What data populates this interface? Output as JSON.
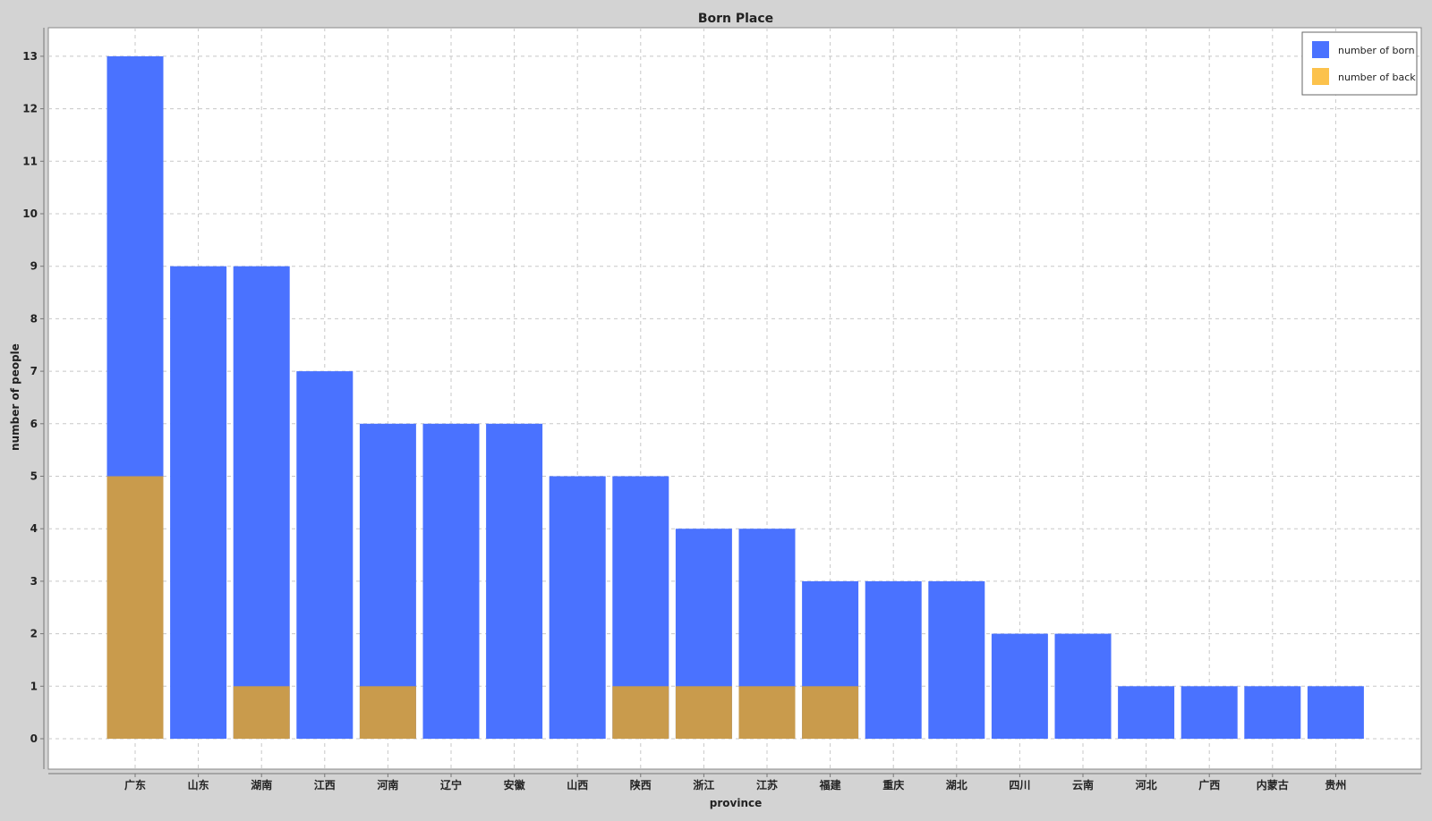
{
  "chart_data": {
    "type": "bar",
    "title": "Born Place",
    "xlabel": "province",
    "ylabel": "number of people",
    "ylim": [
      0,
      13.5
    ],
    "yticks": [
      0,
      1,
      2,
      3,
      4,
      5,
      6,
      7,
      8,
      9,
      10,
      11,
      12,
      13
    ],
    "grid": true,
    "legend_position": "top-right",
    "categories": [
      "广东",
      "山东",
      "湖南",
      "江西",
      "河南",
      "辽宁",
      "安徽",
      "山西",
      "陕西",
      "浙江",
      "江苏",
      "福建",
      "重庆",
      "湖北",
      "四川",
      "云南",
      "河北",
      "广西",
      "内蒙古",
      "贵州"
    ],
    "series": [
      {
        "name": "number of born",
        "color": "#4a72ff",
        "values": [
          13,
          9,
          9,
          7,
          6,
          6,
          6,
          5,
          5,
          4,
          4,
          3,
          3,
          3,
          2,
          2,
          1,
          1,
          1,
          1
        ]
      },
      {
        "name": "number of back",
        "color": "#c99b4c",
        "legend_color": "#fcc24c",
        "values": [
          5,
          0,
          1,
          0,
          1,
          0,
          0,
          0,
          1,
          1,
          1,
          1,
          0,
          0,
          0,
          0,
          0,
          0,
          0,
          0
        ]
      }
    ]
  }
}
